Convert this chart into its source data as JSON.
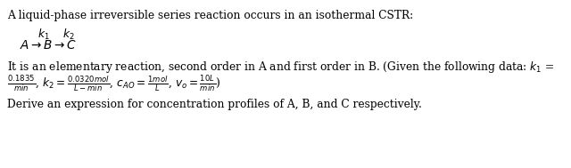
{
  "background_color": "#ffffff",
  "figsize": [
    6.4,
    1.89
  ],
  "dpi": 100,
  "text_color": "#000000",
  "font_size": 8.8,
  "line1": "A liquid-phase irreversible series reaction occurs in an isothermal CSTR:",
  "line3": "It is an elementary reaction, second order in A and first order in B. (Given the following data: $k_1$ =",
  "line4a": "$\\frac{0.1835}{min}$",
  "line4b": ", $k_2 = \\frac{0.0320mol}{L-min}$",
  "line4c": ", $c_{AO} = \\frac{1mol}{L}$",
  "line4d": ", $v_o = \\frac{10L}{min}$)",
  "line5": "Derive an expression for concentration profiles of A, B, and C respectively.",
  "k_line": "$k_1$    $k_2$",
  "reaction_line": "$A \\rightarrow B \\rightarrow C$"
}
